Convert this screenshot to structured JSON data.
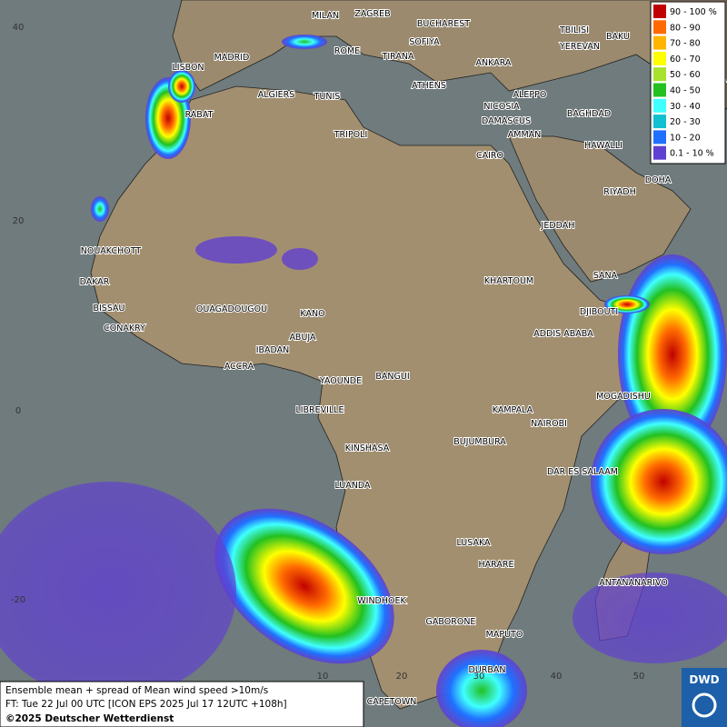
{
  "legend": [
    {
      "label": "90 - 100 %",
      "color": "#c00000"
    },
    {
      "label": "80 - 90",
      "color": "#ff6a00"
    },
    {
      "label": "70 - 80",
      "color": "#ffb400"
    },
    {
      "label": "60 - 70",
      "color": "#ffff00"
    },
    {
      "label": "50 - 60",
      "color": "#a6e22e"
    },
    {
      "label": "40 - 50",
      "color": "#22c020"
    },
    {
      "label": "30 - 40",
      "color": "#40ffff"
    },
    {
      "label": "20 - 30",
      "color": "#10c0d0"
    },
    {
      "label": "10 - 20",
      "color": "#2070ff"
    },
    {
      "label": "0.1 - 10 %",
      "color": "#6040d0"
    }
  ],
  "cities": [
    "MILAN",
    "ZAGREB",
    "BUCHAREST",
    "MADRID",
    "ROME",
    "SOFIYA",
    "TIRANA",
    "ANKARA",
    "TBILISI",
    "YEREVAN",
    "BAKU",
    "TEHRA",
    "LISBON",
    "ALGIERS",
    "TUNIS",
    "ATHENS",
    "ALEPPO",
    "NICOSIA",
    "BAGHDAD",
    "RABAT",
    "DAMASCUS",
    "AMMAN",
    "TRIPOLI",
    "HAWALLI",
    "CAIRO",
    "DOHA",
    "RIYADH",
    "NOUAKCHOTT",
    "JEDDAH",
    "DAKAR",
    "KHARTOUM",
    "SANA",
    "BISSAU",
    "OUAGADOUGOU",
    "KANO",
    "DJIBOUTI",
    "CONAKRY",
    "ABUJA",
    "ADDIS ABABA",
    "IBADAN",
    "ACCRA",
    "YAOUNDE",
    "BANGUI",
    "MOGADISHU",
    "LIBREVILLE",
    "KAMPALA",
    "NAIROBI",
    "KINSHASA",
    "BUJUMBURA",
    "DAR ES SALAAM",
    "LUANDA",
    "LUSAKA",
    "HARARE",
    "ANTANANARIVO",
    "WINDHOEK",
    "GABORONE",
    "MAPUTO",
    "DURBAN",
    "CAPETOWN"
  ],
  "lat_labels": [
    "40",
    "20",
    "0",
    "-20"
  ],
  "lon_labels": [
    "10",
    "20",
    "30",
    "40",
    "50"
  ],
  "footer": {
    "line1": "Ensemble mean + spread of Mean wind speed >10m/s",
    "line2": "FT: Tue 22 Jul 00 UTC [ICON EPS 2025 Jul 17 12UTC +108h]",
    "line3": "©2025 Deutscher Wetterdienst"
  },
  "logo": "DWD"
}
